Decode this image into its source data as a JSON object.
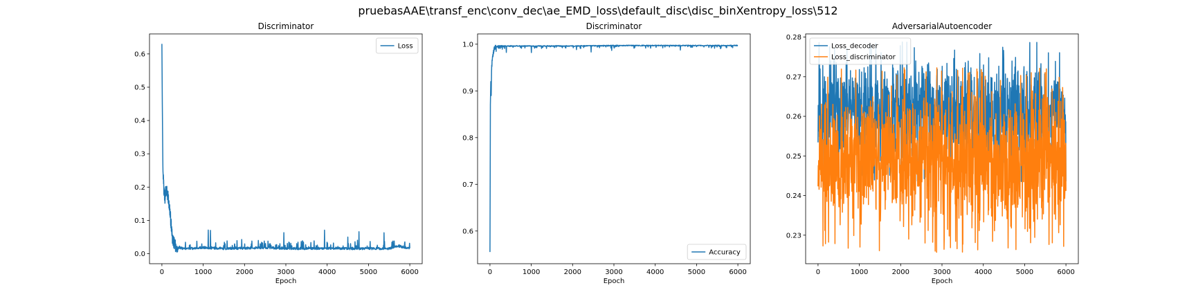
{
  "figure": {
    "suptitle": "pruebasAAE\\transf_enc\\conv_dec\\ae_EMD_loss\\default_disc\\disc_binXentropy_loss\\512"
  },
  "colors": {
    "blue": "#1f77b4",
    "orange": "#ff7f0e"
  },
  "chart_data": [
    {
      "type": "line",
      "title": "Discriminator",
      "xlabel": "Epoch",
      "ylabel": "",
      "xlim": [
        -300,
        6300
      ],
      "ylim": [
        -0.03,
        0.66
      ],
      "xticks": [
        0,
        1000,
        2000,
        3000,
        4000,
        5000,
        6000
      ],
      "yticks": [
        0.0,
        0.1,
        0.2,
        0.3,
        0.4,
        0.5,
        0.6
      ],
      "grid": false,
      "legend": "top-right",
      "series": [
        {
          "name": "Loss",
          "color": "#1f77b4",
          "x": [
            0,
            10,
            25,
            50,
            75,
            100,
            150,
            200,
            250,
            300,
            350,
            400,
            500,
            700,
            1000,
            1500,
            2000,
            2500,
            3000,
            3500,
            4000,
            4500,
            5000,
            5500,
            5700,
            6000
          ],
          "y": [
            0.63,
            0.45,
            0.25,
            0.19,
            0.16,
            0.2,
            0.17,
            0.12,
            0.05,
            0.03,
            0.02,
            0.015,
            0.012,
            0.012,
            0.015,
            0.012,
            0.013,
            0.015,
            0.012,
            0.012,
            0.013,
            0.012,
            0.012,
            0.012,
            0.02,
            0.012
          ],
          "noise": {
            "amplitude": 0.06,
            "from": 400,
            "seed": 3
          }
        }
      ]
    },
    {
      "type": "line",
      "title": "Discriminator",
      "xlabel": "Epoch",
      "ylabel": "",
      "xlim": [
        -300,
        6300
      ],
      "ylim": [
        0.53,
        1.022
      ],
      "xticks": [
        0,
        1000,
        2000,
        3000,
        4000,
        5000,
        6000
      ],
      "yticks": [
        0.6,
        0.7,
        0.8,
        0.9,
        1.0
      ],
      "grid": false,
      "legend": "bottom-right",
      "series": [
        {
          "name": "Accuracy",
          "color": "#1f77b4",
          "x": [
            0,
            5,
            10,
            20,
            30,
            40,
            60,
            80,
            100,
            150,
            200,
            500,
            1000,
            2000,
            3000,
            4000,
            5000,
            6000
          ],
          "y": [
            0.555,
            0.7,
            0.87,
            0.92,
            0.89,
            0.95,
            0.97,
            0.98,
            0.99,
            0.995,
            0.997,
            0.997,
            0.997,
            0.997,
            0.998,
            0.998,
            0.998,
            0.998
          ],
          "noise": {
            "amplitude": -0.015,
            "from": 150,
            "seed": 7
          }
        }
      ]
    },
    {
      "type": "line",
      "title": "AdversarialAutoencoder",
      "xlabel": "Epoch",
      "ylabel": "",
      "xlim": [
        -300,
        6300
      ],
      "ylim": [
        0.2228,
        0.2808
      ],
      "xticks": [
        0,
        1000,
        2000,
        3000,
        4000,
        5000,
        6000
      ],
      "yticks": [
        0.23,
        0.24,
        0.25,
        0.26,
        0.27,
        0.28
      ],
      "grid": false,
      "legend": "top-left",
      "series": [
        {
          "name": "Loss_decoder",
          "color": "#1f77b4",
          "x": [
            0,
            6000
          ],
          "y": [
            0.2595,
            0.2595
          ],
          "band": {
            "low": 0.243,
            "high": 0.279,
            "seed": 11
          }
        },
        {
          "name": "Loss_discriminator",
          "color": "#ff7f0e",
          "x": [
            0,
            6000
          ],
          "y": [
            0.247,
            0.247
          ],
          "band": {
            "low": 0.2255,
            "high": 0.2725,
            "seed": 19
          }
        }
      ]
    }
  ]
}
